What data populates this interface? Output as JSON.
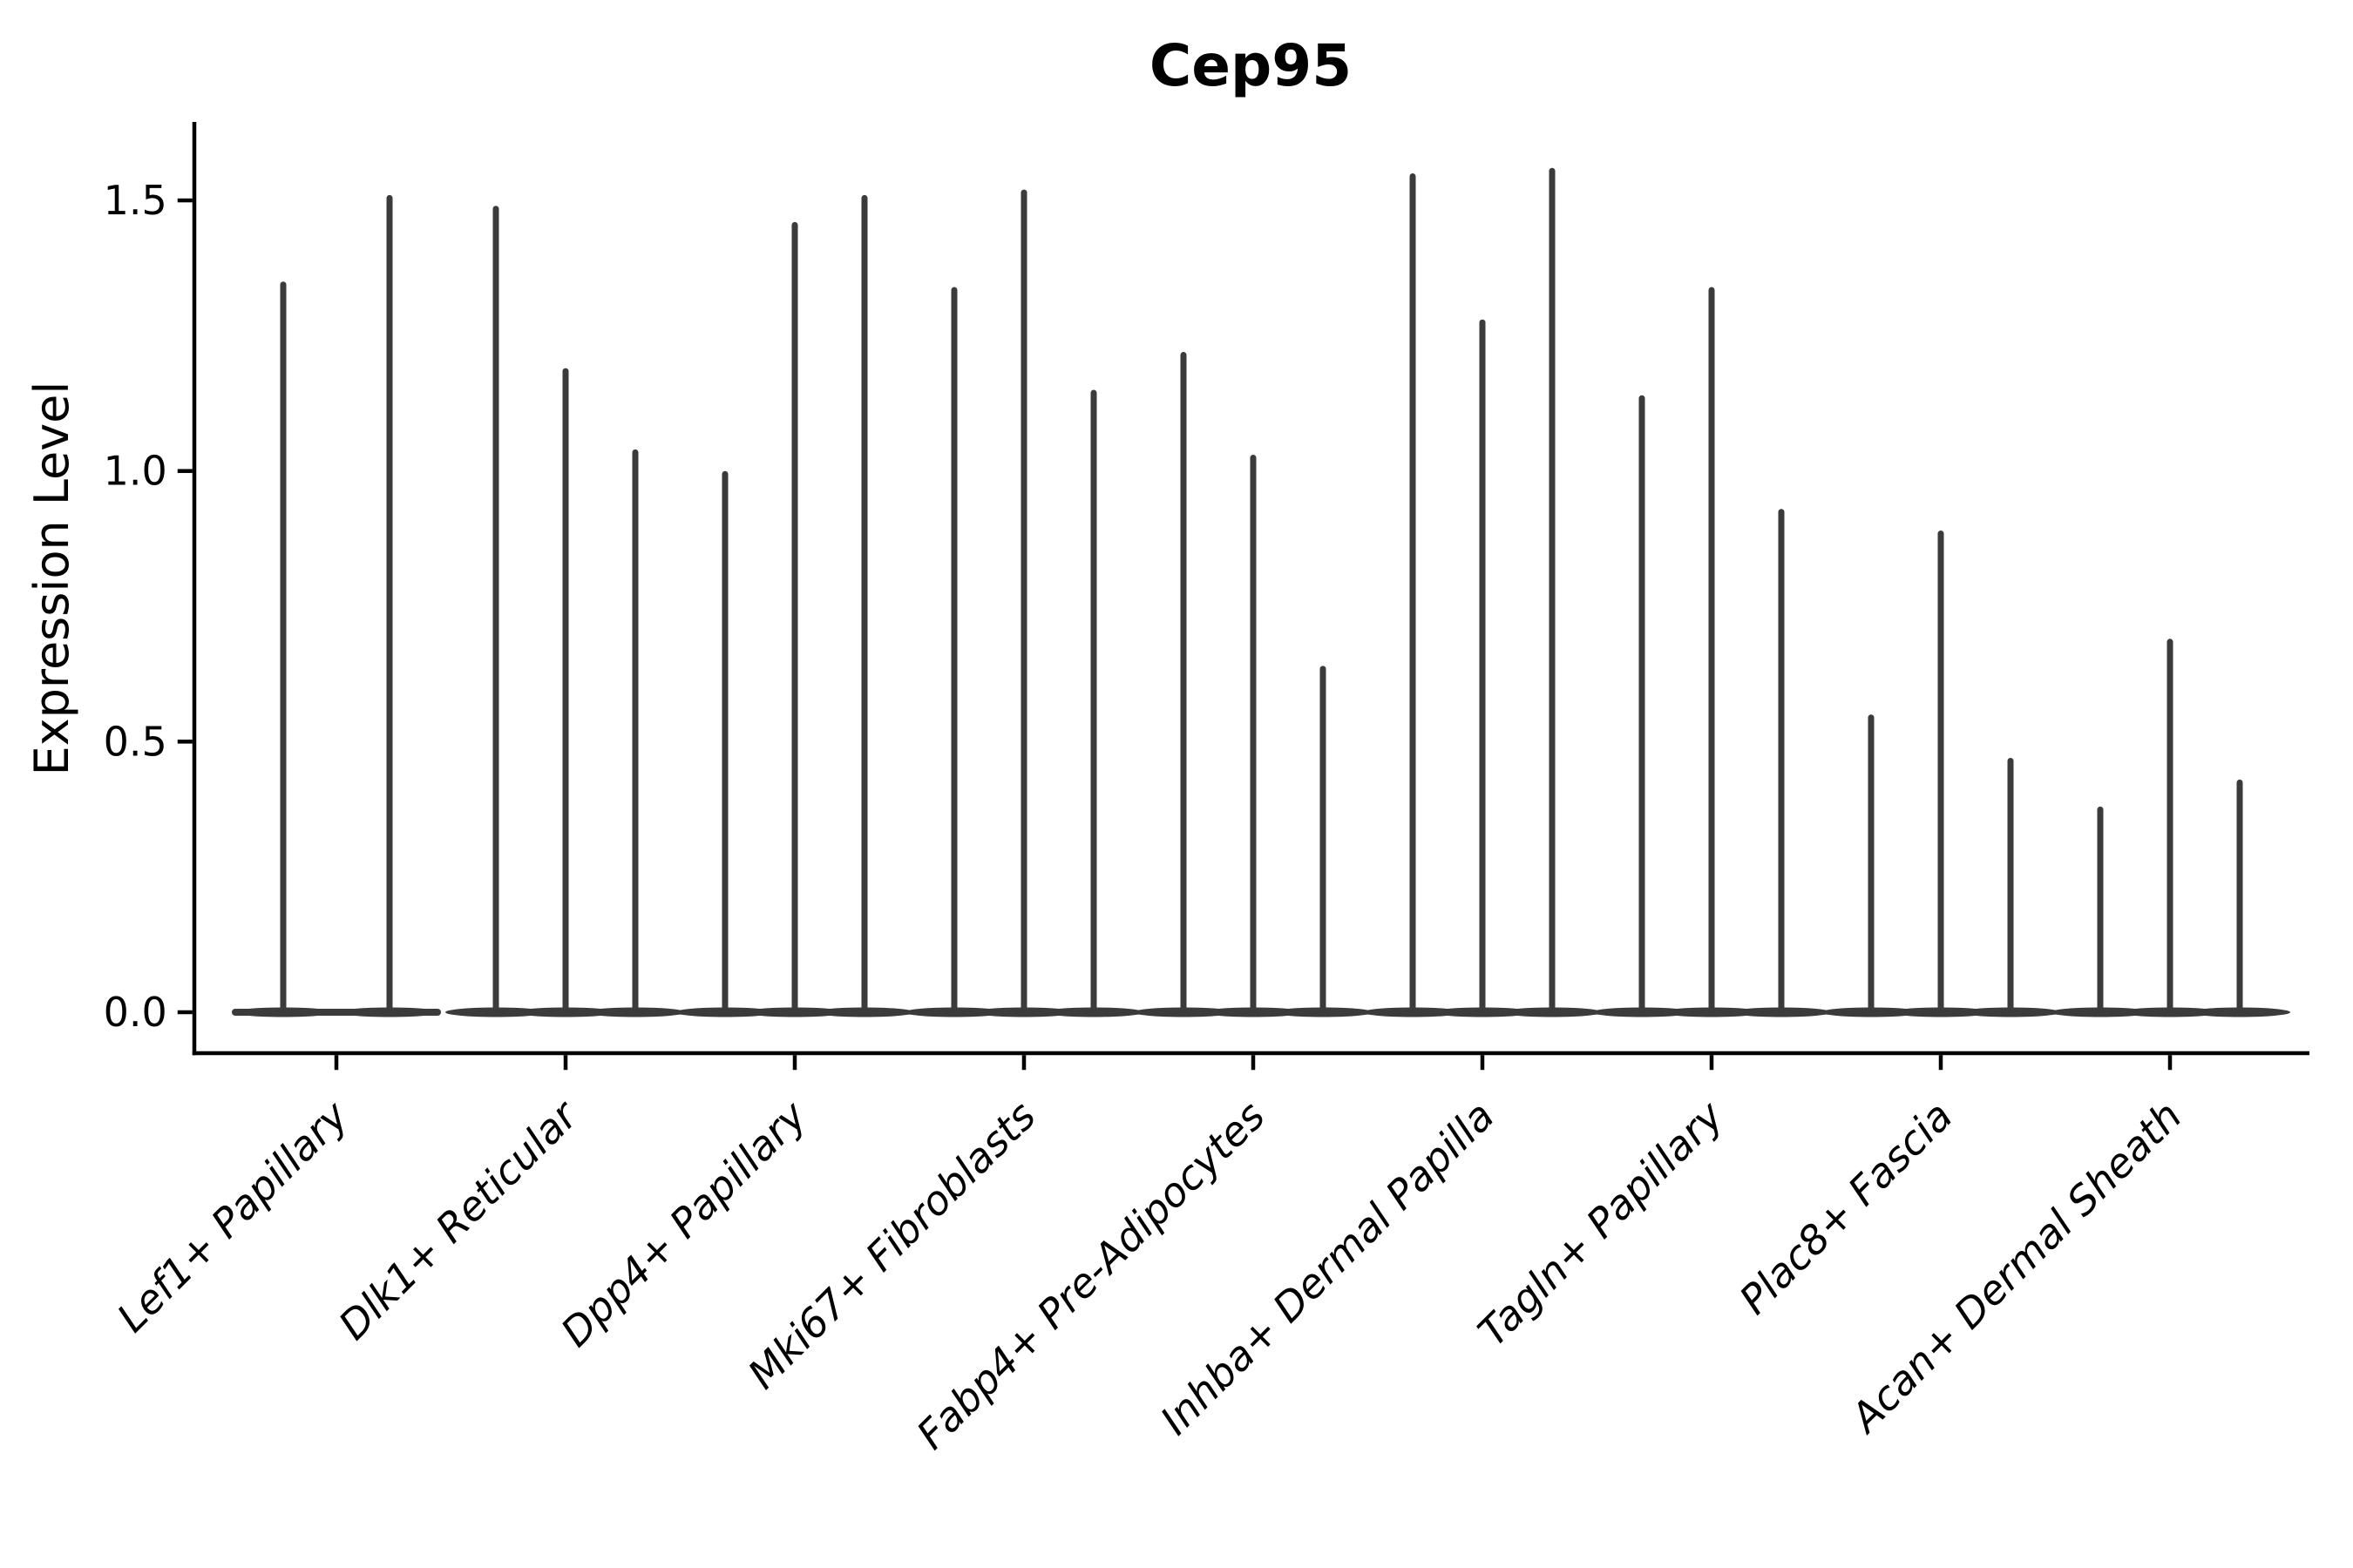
{
  "title": "Cep95",
  "y_axis": {
    "label": "Expression Level",
    "tick_labels": [
      "0.0",
      "0.5",
      "1.0",
      "1.5"
    ]
  },
  "colors": {
    "violin": "#3b3b3b",
    "axis": "#000000",
    "text": "#000000",
    "background": "#ffffff"
  },
  "chart_data": {
    "type": "violin",
    "title": "Cep95",
    "xlabel": "",
    "ylabel": "Expression Level",
    "yticks": [
      0.0,
      0.5,
      1.0,
      1.5
    ],
    "ylim": [
      -0.08,
      1.65
    ],
    "grid": false,
    "legend_position": "none",
    "categories": [
      "Lef1+ Papillary",
      "Dlk1+ Reticular",
      "Dpp4+ Papillary",
      "Mki67+ Fibroblasts",
      "Fabp4+ Pre-Adipocytes",
      "Inhba+ Dermal Papilla",
      "Tagln+ Papillary",
      "Plac8+ Fascia",
      "Acan+ Dermal Sheath"
    ],
    "series": [
      {
        "category": "Lef1+ Papillary",
        "violin_max_values": [
          1.35,
          1.51
        ]
      },
      {
        "category": "Dlk1+ Reticular",
        "violin_max_values": [
          1.49,
          1.19,
          1.04
        ]
      },
      {
        "category": "Dpp4+ Papillary",
        "violin_max_values": [
          1.0,
          1.46,
          1.51
        ]
      },
      {
        "category": "Mki67+ Fibroblasts",
        "violin_max_values": [
          1.34,
          1.52,
          1.15
        ]
      },
      {
        "category": "Fabp4+ Pre-Adipocytes",
        "violin_max_values": [
          1.22,
          1.03,
          0.64
        ]
      },
      {
        "category": "Inhba+ Dermal Papilla",
        "violin_max_values": [
          1.55,
          1.28,
          1.56
        ]
      },
      {
        "category": "Tagln+ Papillary",
        "violin_max_values": [
          1.14,
          1.34,
          0.93
        ]
      },
      {
        "category": "Plac8+ Fascia",
        "violin_max_values": [
          0.55,
          0.89,
          0.47
        ]
      },
      {
        "category": "Acan+ Dermal Sheath",
        "violin_max_values": [
          0.38,
          0.69,
          0.43
        ]
      }
    ]
  }
}
